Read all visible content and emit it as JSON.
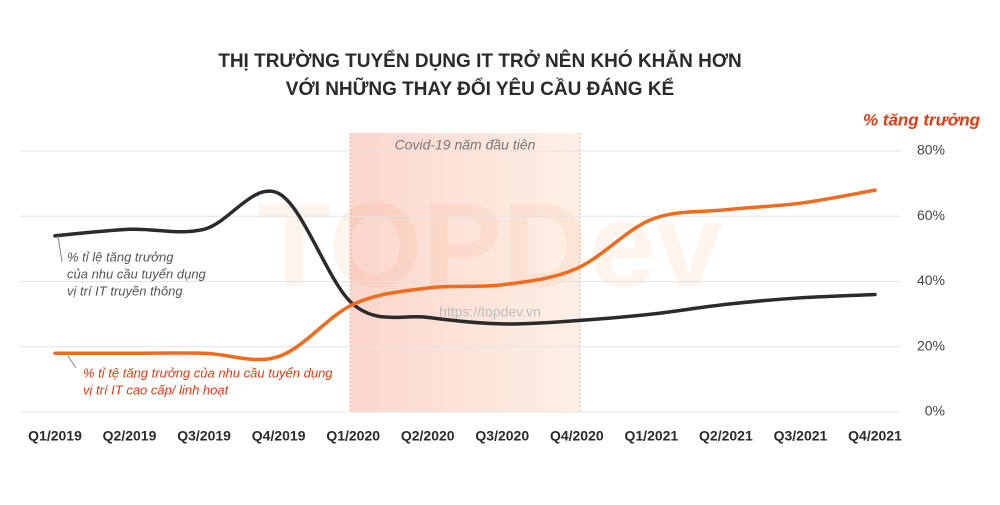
{
  "chart_data": {
    "type": "line",
    "title": [
      "THỊ TRƯỜNG TUYỂN DỤNG IT TRỞ NÊN KHÓ KHĂN HƠN",
      "VỚI NHỮNG THAY ĐỔI YÊU CẦU ĐÁNG KỂ"
    ],
    "y_axis_title": "% tăng trưởng",
    "categories": [
      "Q1/2019",
      "Q2/2019",
      "Q3/2019",
      "Q4/2019",
      "Q1/2020",
      "Q2/2020",
      "Q3/2020",
      "Q4/2020",
      "Q1/2021",
      "Q2/2021",
      "Q3/2021",
      "Q4/2021"
    ],
    "series": [
      {
        "label": [
          "% tỉ lệ tăng trưởng",
          "của nhu cầu tuyển dụng",
          "vị trí IT truyền thông"
        ],
        "color": "#2b2b2b",
        "values": [
          54,
          56,
          56,
          67,
          33,
          29,
          27,
          28,
          30,
          33,
          35,
          36
        ]
      },
      {
        "label": [
          "% tỉ tệ tăng trưởng của nhu cầu tuyển dụng",
          "vị trí IT cao cấp/ linh hoạt"
        ],
        "color": "#f26b1d",
        "values": [
          18,
          18,
          18,
          17,
          33,
          38,
          39,
          44,
          59,
          62,
          64,
          68
        ]
      }
    ],
    "highlight": {
      "label": "Covid-19 năm đầu tiên",
      "from": "Q1/2020",
      "to": "Q4/2020"
    },
    "watermark": [
      "TOPDev",
      "https://topdev.vn"
    ],
    "ylim": [
      0,
      80
    ],
    "yticks": [
      {
        "value": 0,
        "label": "0%"
      },
      {
        "value": 20,
        "label": "20%"
      },
      {
        "value": 40,
        "label": "40%"
      },
      {
        "value": 60,
        "label": "60%"
      },
      {
        "value": 80,
        "label": "80%"
      }
    ],
    "grid": true
  }
}
